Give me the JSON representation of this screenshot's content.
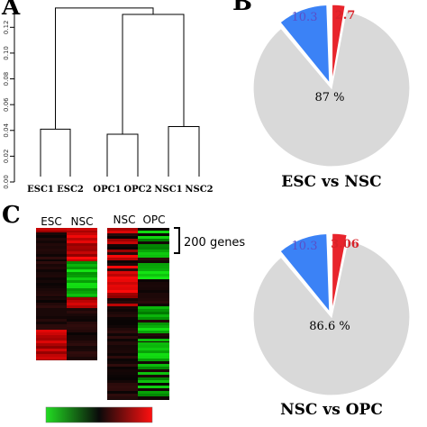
{
  "panels": {
    "a": "A",
    "b": "B",
    "c": "C"
  },
  "colors": {
    "gray": "#d9d9d9",
    "blue": "#3b82f6",
    "red": "#e8242c",
    "blue_text": "#5a4fc8",
    "red_text": "#d8232a",
    "heat_red": "#ff1010",
    "heat_black": "#0a0a0a",
    "heat_green": "#22dd22"
  },
  "chart_data": [
    {
      "type": "dendrogram",
      "leaves": [
        "ESC1",
        "ESC2",
        "OPC1",
        "OPC2",
        "NSC1",
        "NSC2"
      ],
      "ylim": [
        0,
        0.13
      ],
      "yticks": [
        "0.00",
        "0.02",
        "0.04",
        "0.06",
        "0.08",
        "0.10",
        "0.12"
      ],
      "ytick_values": [
        0,
        0.02,
        0.04,
        0.06,
        0.08,
        0.1,
        0.12
      ],
      "merges": [
        {
          "left": "ESC1",
          "right": "ESC2",
          "height": 0.041
        },
        {
          "left": "OPC1",
          "right": "OPC2",
          "height": 0.037
        },
        {
          "left": "NSC1",
          "right": "NSC2",
          "height": 0.043
        },
        {
          "left": "OPC",
          "right": "NSC",
          "height": 0.13
        },
        {
          "left": "ESC",
          "right": "OPC+NSC",
          "height": 0.135
        }
      ]
    },
    {
      "type": "pie",
      "title": "ESC vs NSC",
      "slices": [
        {
          "value": 87,
          "label": "87 %",
          "color": "#d9d9d9"
        },
        {
          "value": 10.3,
          "label": "10.3",
          "color": "#3b82f6"
        },
        {
          "value": 2.7,
          "label": "2.7",
          "color": "#e8242c"
        }
      ]
    },
    {
      "type": "heatmap",
      "columns_left": [
        "ESC",
        "NSC"
      ],
      "columns_right": [
        "NSC",
        "OPC"
      ],
      "annotation": "200 genes",
      "colorbar": [
        "#22dd22",
        "#0a0a0a",
        "#ff1010"
      ]
    },
    {
      "type": "pie",
      "title": "NSC vs OPC",
      "slices": [
        {
          "value": 86.6,
          "label": "86.6 %",
          "color": "#d9d9d9"
        },
        {
          "value": 10.3,
          "label": "10.3",
          "color": "#3b82f6"
        },
        {
          "value": 3.06,
          "label": "3.06",
          "color": "#e8242c"
        }
      ]
    }
  ]
}
